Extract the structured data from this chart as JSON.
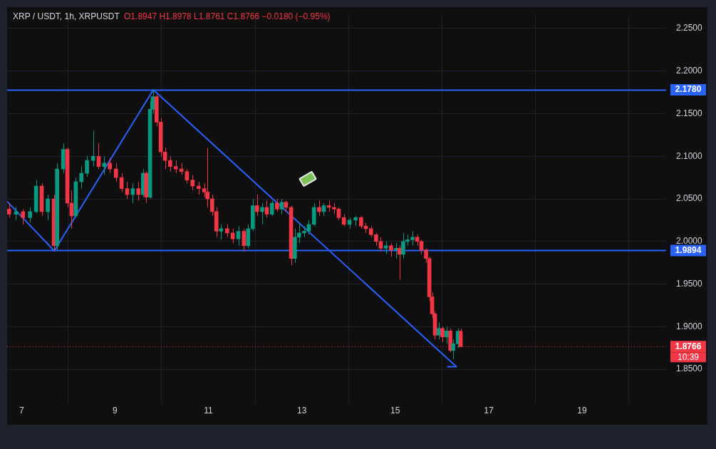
{
  "chart_data": {
    "type": "candlestick",
    "title": "XRP / USDT, 1h, XRPUSDT",
    "subtitle": "O1.8947 H1.8978 L1.8761 C1.8766 −0.0180 (−0.95%)",
    "x": [
      6.73,
      6.88,
      7.03,
      7.18,
      7.31,
      7.43,
      7.56,
      7.69,
      7.76,
      7.89,
      7.98,
      8.07,
      8.16,
      8.28,
      8.4,
      8.53,
      8.65,
      8.77,
      8.89,
      9.02,
      9.14,
      9.26,
      9.38,
      9.5,
      9.6,
      9.67,
      9.75,
      9.81,
      9.89,
      9.98,
      10.07,
      10.18,
      10.3,
      10.42,
      10.54,
      10.66,
      10.79,
      10.91,
      10.98,
      11.08,
      11.17,
      11.27,
      11.4,
      11.52,
      11.64,
      11.76,
      11.85,
      11.95,
      12.04,
      12.15,
      12.25,
      12.36,
      12.47,
      12.57,
      12.66,
      12.77,
      12.85,
      12.94,
      13.05,
      13.15,
      13.26,
      13.37,
      13.47,
      13.58,
      13.69,
      13.79,
      13.9,
      14.02,
      14.15,
      14.27,
      14.37,
      14.48,
      14.59,
      14.69,
      14.8,
      14.91,
      15.02,
      15.09,
      15.17,
      15.26,
      15.37,
      15.47,
      15.56,
      15.66,
      15.73,
      15.79,
      15.85,
      15.93,
      16.01,
      16.1,
      16.18,
      16.24,
      16.34,
      16.4
    ],
    "ohlc": [
      [
        2.038,
        2.045,
        2.028,
        2.032
      ],
      [
        2.032,
        2.04,
        2.025,
        2.035
      ],
      [
        2.035,
        2.038,
        2.02,
        2.028
      ],
      [
        2.028,
        2.04,
        2.022,
        2.035
      ],
      [
        2.035,
        2.072,
        2.033,
        2.065
      ],
      [
        2.065,
        2.068,
        2.03,
        2.035
      ],
      [
        2.035,
        2.055,
        2.025,
        2.05
      ],
      [
        2.05,
        2.055,
        1.99,
        1.995
      ],
      [
        1.995,
        2.092,
        1.99,
        2.085
      ],
      [
        2.085,
        2.115,
        2.08,
        2.108
      ],
      [
        2.108,
        2.11,
        2.04,
        2.045
      ],
      [
        2.045,
        2.06,
        2.015,
        2.03
      ],
      [
        2.03,
        2.075,
        2.028,
        2.07
      ],
      [
        2.07,
        2.088,
        2.062,
        2.08
      ],
      [
        2.08,
        2.1,
        2.076,
        2.095
      ],
      [
        2.095,
        2.13,
        2.088,
        2.1
      ],
      [
        2.1,
        2.115,
        2.085,
        2.088
      ],
      [
        2.088,
        2.1,
        2.078,
        2.092
      ],
      [
        2.092,
        2.098,
        2.08,
        2.085
      ],
      [
        2.085,
        2.092,
        2.07,
        2.075
      ],
      [
        2.075,
        2.08,
        2.058,
        2.062
      ],
      [
        2.062,
        2.07,
        2.05,
        2.055
      ],
      [
        2.055,
        2.068,
        2.045,
        2.062
      ],
      [
        2.062,
        2.07,
        2.048,
        2.055
      ],
      [
        2.055,
        2.085,
        2.052,
        2.08
      ],
      [
        2.08,
        2.082,
        2.045,
        2.052
      ],
      [
        2.052,
        2.165,
        2.05,
        2.155
      ],
      [
        2.155,
        2.178,
        2.15,
        2.17
      ],
      [
        2.17,
        2.172,
        2.135,
        2.14
      ],
      [
        2.14,
        2.145,
        2.1,
        2.105
      ],
      [
        2.105,
        2.11,
        2.085,
        2.095
      ],
      [
        2.095,
        2.1,
        2.082,
        2.088
      ],
      [
        2.088,
        2.095,
        2.08,
        2.085
      ],
      [
        2.085,
        2.092,
        2.078,
        2.082
      ],
      [
        2.082,
        2.085,
        2.068,
        2.072
      ],
      [
        2.072,
        2.078,
        2.06,
        2.065
      ],
      [
        2.065,
        2.07,
        2.055,
        2.062
      ],
      [
        2.062,
        2.068,
        2.052,
        2.058
      ],
      [
        2.058,
        2.11,
        2.04,
        2.05
      ],
      [
        2.05,
        2.055,
        2.03,
        2.035
      ],
      [
        2.035,
        2.04,
        2.005,
        2.012
      ],
      [
        2.012,
        2.02,
        2.002,
        2.015
      ],
      [
        2.015,
        2.02,
        2.005,
        2.01
      ],
      [
        2.01,
        2.015,
        1.998,
        2.003
      ],
      [
        2.003,
        2.018,
        1.995,
        2.012
      ],
      [
        2.012,
        2.015,
        1.988,
        1.995
      ],
      [
        1.995,
        2.02,
        1.992,
        2.015
      ],
      [
        2.015,
        2.05,
        2.012,
        2.042
      ],
      [
        2.042,
        2.055,
        2.03,
        2.035
      ],
      [
        2.035,
        2.045,
        2.02,
        2.04
      ],
      [
        2.04,
        2.048,
        2.028,
        2.032
      ],
      [
        2.032,
        2.048,
        2.03,
        2.045
      ],
      [
        2.045,
        2.05,
        2.035,
        2.038
      ],
      [
        2.038,
        2.05,
        2.032,
        2.046
      ],
      [
        2.046,
        2.048,
        2.035,
        2.04
      ],
      [
        2.04,
        2.042,
        1.972,
        1.98
      ],
      [
        1.98,
        2.015,
        1.975,
        2.005
      ],
      [
        2.005,
        2.022,
        1.998,
        2.01
      ],
      [
        2.01,
        2.018,
        2.005,
        2.012
      ],
      [
        2.012,
        2.025,
        2.008,
        2.02
      ],
      [
        2.02,
        2.045,
        2.018,
        2.04
      ],
      [
        2.04,
        2.048,
        2.03,
        2.035
      ],
      [
        2.035,
        2.045,
        2.03,
        2.042
      ],
      [
        2.042,
        2.048,
        2.035,
        2.04
      ],
      [
        2.04,
        2.045,
        2.032,
        2.038
      ],
      [
        2.038,
        2.04,
        2.025,
        2.028
      ],
      [
        2.028,
        2.032,
        2.018,
        2.02
      ],
      [
        2.02,
        2.028,
        2.015,
        2.025
      ],
      [
        2.025,
        2.03,
        2.018,
        2.028
      ],
      [
        2.028,
        2.03,
        2.015,
        2.018
      ],
      [
        2.018,
        2.022,
        2.01,
        2.015
      ],
      [
        2.015,
        2.018,
        2.005,
        2.008
      ],
      [
        2.008,
        2.01,
        1.995,
        2.0
      ],
      [
        2.0,
        2.005,
        1.988,
        1.992
      ],
      [
        1.992,
        2.0,
        1.985,
        1.995
      ],
      [
        1.995,
        1.998,
        1.982,
        1.99
      ],
      [
        1.99,
        1.998,
        1.98,
        1.992
      ],
      [
        1.992,
        1.995,
        1.955,
        1.985
      ],
      [
        1.985,
        2.01,
        1.98,
        2.0
      ],
      [
        2.0,
        2.008,
        1.995,
        2.002
      ],
      [
        2.002,
        2.012,
        1.995,
        2.005
      ],
      [
        2.005,
        2.008,
        1.995,
        2.0
      ],
      [
        2.0,
        2.002,
        1.985,
        1.99
      ],
      [
        1.99,
        1.992,
        1.975,
        1.98
      ],
      [
        1.98,
        1.982,
        1.93,
        1.935
      ],
      [
        1.935,
        1.94,
        1.91,
        1.915
      ],
      [
        1.915,
        1.918,
        1.885,
        1.89
      ],
      [
        1.89,
        1.905,
        1.885,
        1.898
      ],
      [
        1.898,
        1.9,
        1.882,
        1.888
      ],
      [
        1.888,
        1.9,
        1.88,
        1.895
      ],
      [
        1.895,
        1.898,
        1.87,
        1.872
      ],
      [
        1.872,
        1.885,
        1.862,
        1.88
      ],
      [
        1.88,
        1.898,
        1.875,
        1.8947
      ],
      [
        1.8947,
        1.8978,
        1.8761,
        1.8766
      ]
    ],
    "colors": [
      "#f23645",
      "#089981",
      "#f23645",
      "#089981",
      "#089981",
      "#f23645",
      "#089981",
      "#f23645",
      "#089981",
      "#089981",
      "#f23645",
      "#f23645",
      "#089981",
      "#089981",
      "#089981",
      "#089981",
      "#f23645",
      "#089981",
      "#f23645",
      "#f23645",
      "#f23645",
      "#f23645",
      "#089981",
      "#f23645",
      "#089981",
      "#f23645",
      "#089981",
      "#089981",
      "#f23645",
      "#f23645",
      "#f23645",
      "#f23645",
      "#f23645",
      "#f23645",
      "#f23645",
      "#f23645",
      "#f23645",
      "#f23645",
      "#f23645",
      "#f23645",
      "#f23645",
      "#089981",
      "#f23645",
      "#f23645",
      "#089981",
      "#f23645",
      "#089981",
      "#089981",
      "#f23645",
      "#089981",
      "#f23645",
      "#089981",
      "#f23645",
      "#089981",
      "#f23645",
      "#f23645",
      "#089981",
      "#089981",
      "#089981",
      "#089981",
      "#089981",
      "#f23645",
      "#089981",
      "#f23645",
      "#f23645",
      "#f23645",
      "#f23645",
      "#089981",
      "#089981",
      "#f23645",
      "#f23645",
      "#f23645",
      "#f23645",
      "#f23645",
      "#089981",
      "#f23645",
      "#089981",
      "#f23645",
      "#089981",
      "#089981",
      "#089981",
      "#f23645",
      "#f23645",
      "#f23645",
      "#f23645",
      "#f23645",
      "#f23645",
      "#089981",
      "#f23645",
      "#089981",
      "#f23645",
      "#089981",
      "#089981",
      "#f23645"
    ],
    "series": [
      {
        "type": "line",
        "color": "#2962ff",
        "x": [
          6.69,
          7.7,
          9.82,
          16.31,
          16.11
        ],
        "values": [
          2.047,
          1.989,
          2.178,
          1.853,
          1.853
        ]
      }
    ],
    "xlim": [
      6.69,
      20.8
    ],
    "xticks": [
      7,
      9,
      11,
      13,
      15,
      17,
      19
    ],
    "ylim": [
      1.81,
      2.2656
    ],
    "yticks": [
      {
        "value": 1.85,
        "label": "1.8500"
      },
      {
        "value": 1.9,
        "label": "1.9000"
      },
      {
        "value": 1.95,
        "label": "1.9500"
      },
      {
        "value": 2,
        "label": "2.0000"
      },
      {
        "value": 2.05,
        "label": "2.0500"
      },
      {
        "value": 2.1,
        "label": "2.1000"
      },
      {
        "value": 2.15,
        "label": "2.1500"
      },
      {
        "value": 2.2,
        "label": "2.2000"
      },
      {
        "value": 2.25,
        "label": "2.2500"
      }
    ],
    "ref_lines": [
      {
        "axis": "y",
        "value": 2.178,
        "label": "2.1780",
        "color": "#2962ff",
        "line_style": "solid"
      },
      {
        "axis": "y",
        "value": 1.9894,
        "label": "1.9894",
        "color": "#2962ff",
        "line_style": "solid"
      },
      {
        "axis": "y",
        "value": 1.8766,
        "label": "1.8766",
        "color": "#f23645",
        "line_style": "dotted"
      }
    ],
    "annotations": [
      "10:39"
    ],
    "grid": true
  }
}
